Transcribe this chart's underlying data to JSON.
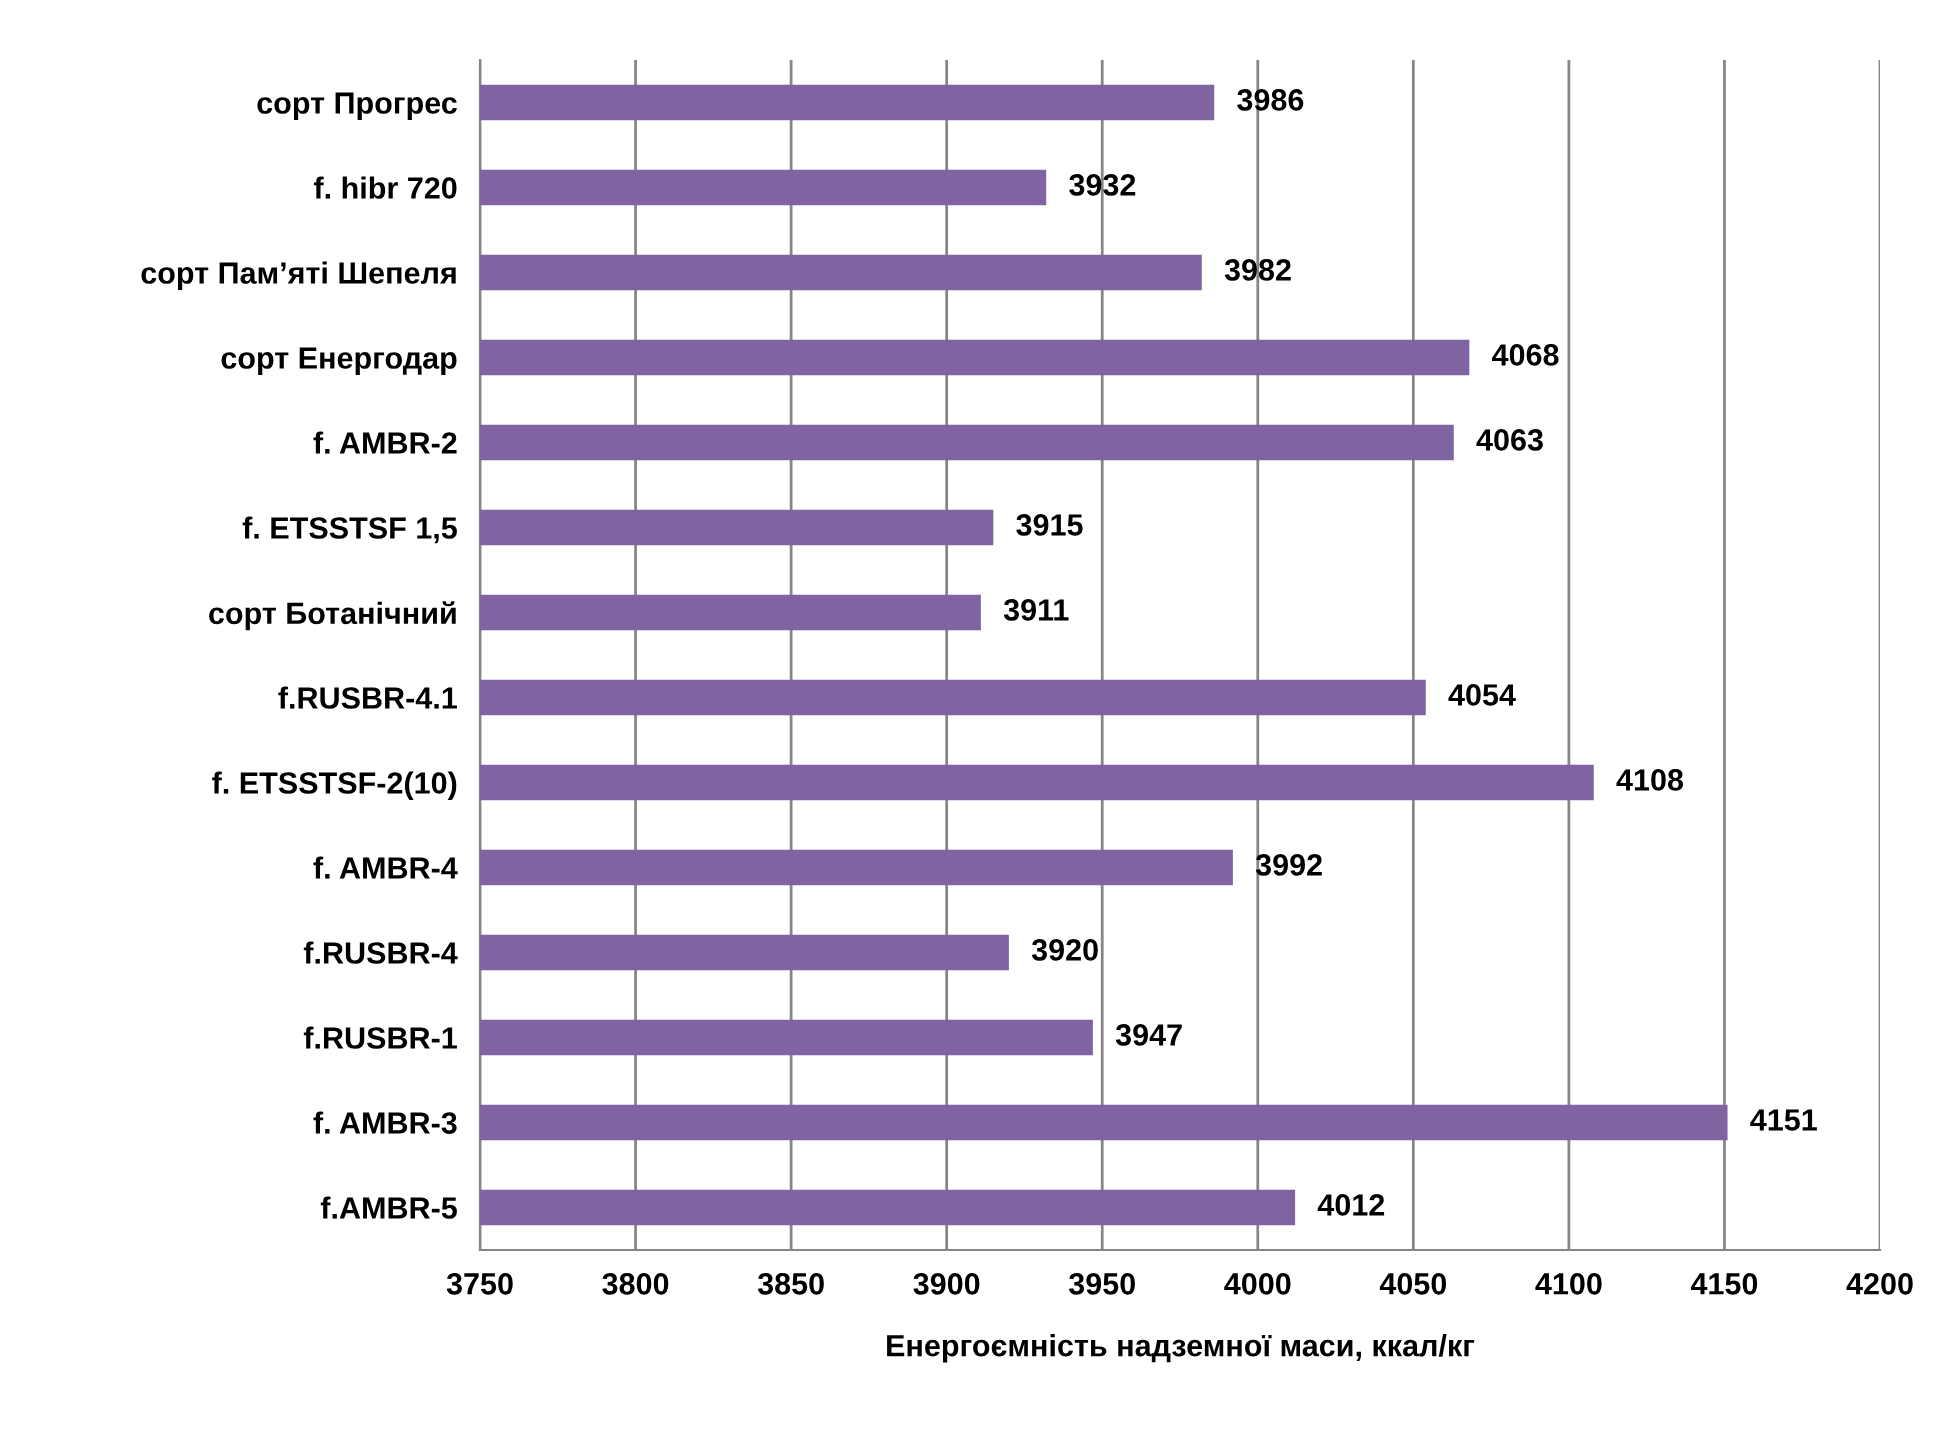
{
  "chart_data": {
    "type": "bar",
    "orientation": "horizontal",
    "xlabel": "Енергоємність надземної маси, ккал/кг",
    "categories": [
      "сорт Прогрес",
      "f. hibr 720",
      "сорт Пам’яті Шепеля",
      "сорт Енергодар",
      "f. AMBR-2",
      "f. ETSSTSF 1,5",
      "сорт Ботанічний",
      "f.RUSBR-4.1",
      "f. ETSSTSF-2(10)",
      "f. AMBR-4",
      "f.RUSBR-4",
      "f.RUSBR-1",
      "f. AMBR-3",
      "f.AMBR-5"
    ],
    "values": [
      3986,
      3932,
      3982,
      4068,
      4063,
      3915,
      3911,
      4054,
      4108,
      3992,
      3920,
      3947,
      4151,
      4012
    ],
    "color": "#8064a2",
    "xlim": [
      3750,
      4200
    ],
    "xticks": [
      3750,
      3800,
      3850,
      3900,
      3950,
      4000,
      4050,
      4100,
      4150,
      4200
    ],
    "grid": "x",
    "data_labels": true,
    "legend": false
  }
}
